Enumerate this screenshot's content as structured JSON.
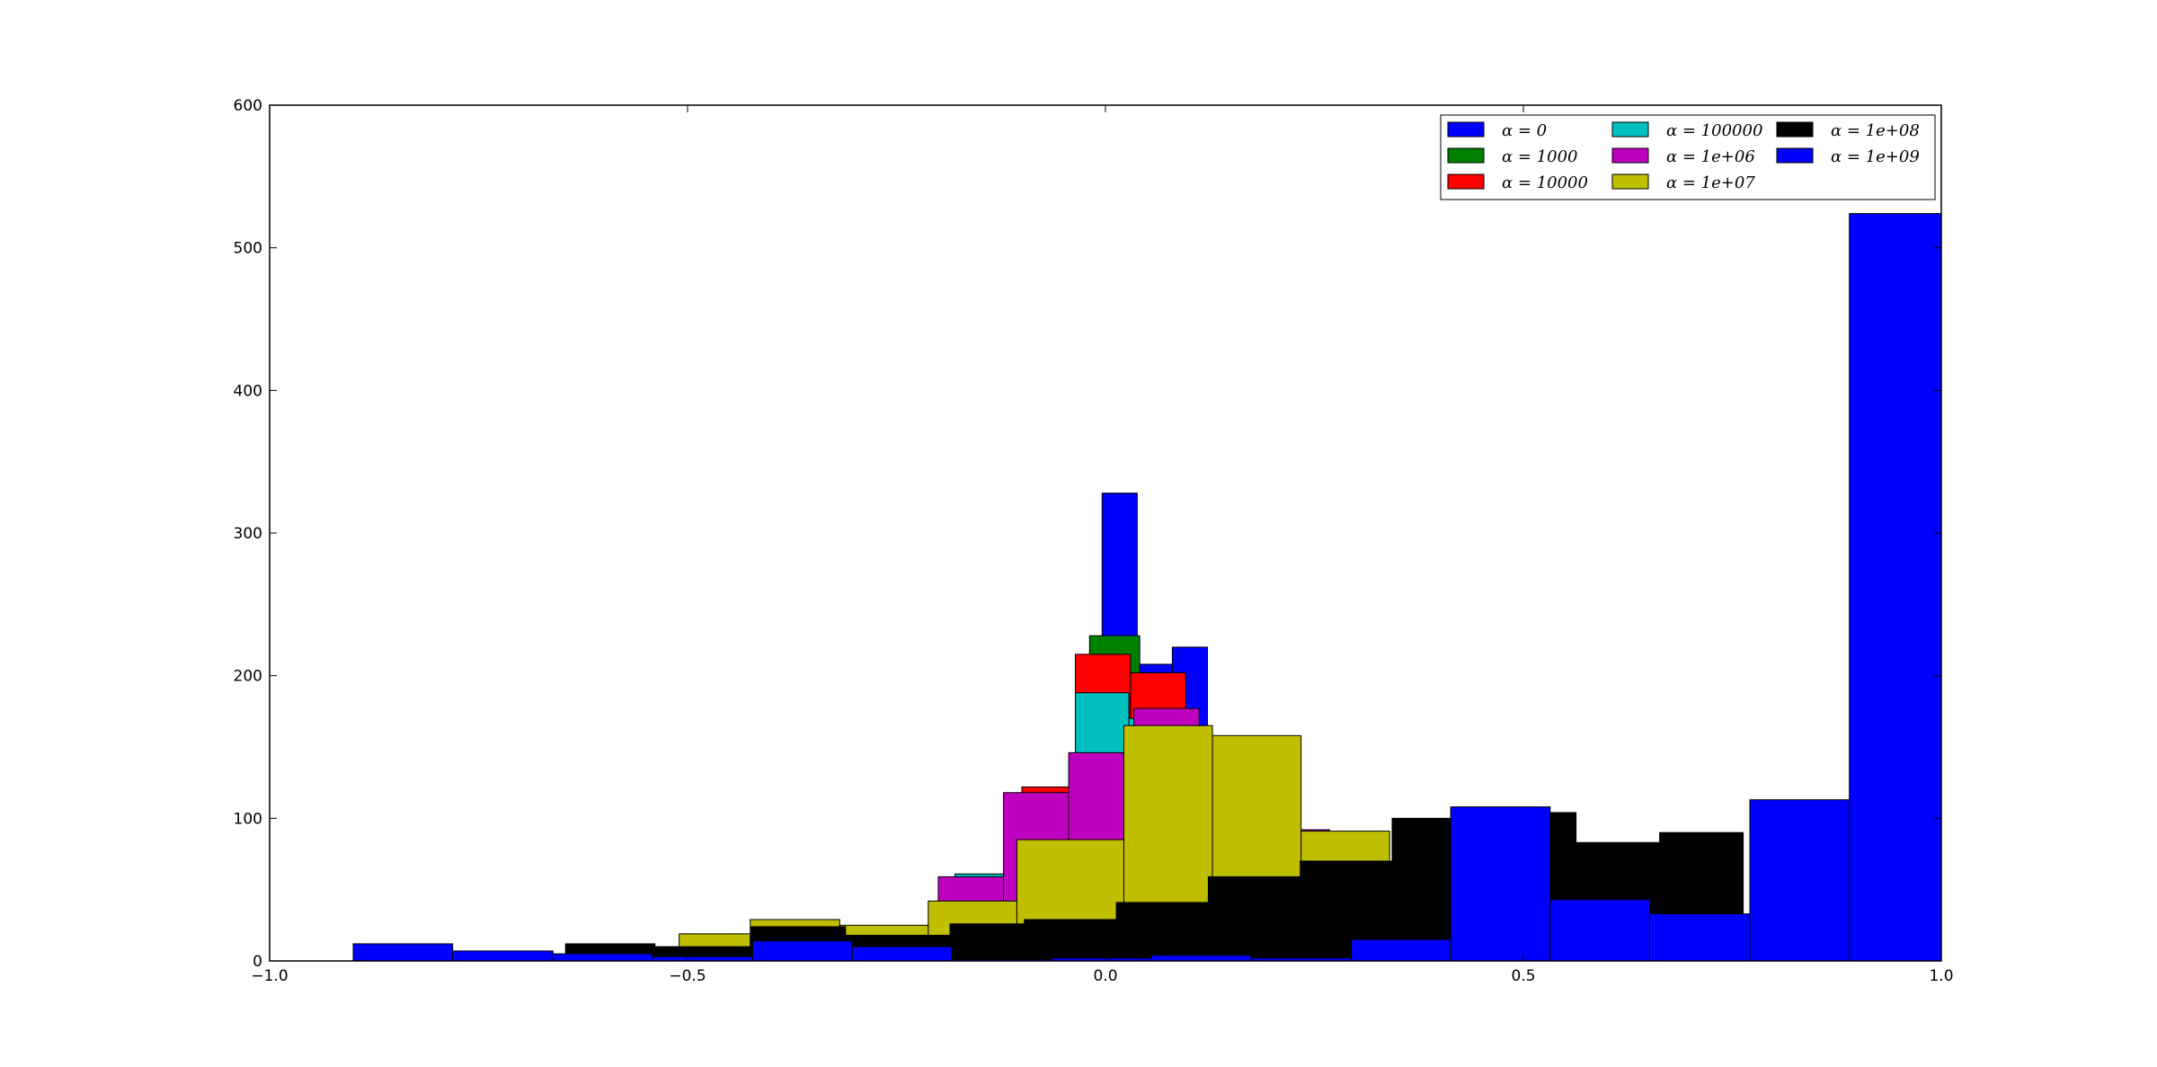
{
  "chart_data": {
    "type": "bar",
    "title": "",
    "xlabel": "",
    "ylabel": "",
    "xlim": [
      -1.0,
      1.0
    ],
    "ylim": [
      0,
      600
    ],
    "x_ticks": [
      -1.0,
      -0.5,
      0.0,
      0.5,
      1.0
    ],
    "x_tick_labels": [
      "−1.0",
      "−0.5",
      "0.0",
      "0.5",
      "1.0"
    ],
    "y_ticks": [
      0,
      100,
      200,
      300,
      400,
      500,
      600
    ],
    "y_tick_labels": [
      "0",
      "100",
      "200",
      "300",
      "400",
      "500",
      "600"
    ],
    "grid": false,
    "legend_position": "upper-right",
    "legend_columns": 3,
    "series": [
      {
        "name": "α = 0",
        "color": "#0000ff",
        "bins": [
          [
            -0.13,
            -0.088,
            1
          ],
          [
            -0.088,
            -0.046,
            5
          ],
          [
            -0.046,
            -0.004,
            68
          ],
          [
            -0.004,
            0.038,
            328
          ],
          [
            0.038,
            0.08,
            208
          ],
          [
            0.08,
            0.122,
            220
          ],
          [
            0.122,
            0.164,
            60
          ],
          [
            0.164,
            0.206,
            32
          ],
          [
            0.206,
            0.248,
            6
          ],
          [
            0.248,
            0.29,
            2
          ]
        ]
      },
      {
        "name": "α = 1000",
        "color": "#008000",
        "bins": [
          [
            -0.144,
            -0.082,
            3
          ],
          [
            -0.082,
            -0.036,
            18
          ],
          [
            -0.036,
            -0.019,
            178
          ],
          [
            -0.019,
            0.041,
            228
          ],
          [
            0.041,
            0.087,
            150
          ],
          [
            0.087,
            0.133,
            60
          ],
          [
            0.133,
            0.179,
            20
          ],
          [
            0.179,
            0.225,
            6
          ]
        ]
      },
      {
        "name": "α = 10000",
        "color": "#ff0000",
        "bins": [
          [
            -0.16,
            -0.1,
            4
          ],
          [
            -0.1,
            -0.036,
            122
          ],
          [
            -0.036,
            0.03,
            215
          ],
          [
            0.03,
            0.096,
            202
          ],
          [
            0.096,
            0.162,
            120
          ],
          [
            0.162,
            0.228,
            30
          ]
        ]
      },
      {
        "name": "α = 100000",
        "color": "#00bfbf",
        "bins": [
          [
            -0.18,
            -0.116,
            61
          ],
          [
            -0.116,
            -0.036,
            100
          ],
          [
            -0.036,
            0.028,
            188
          ],
          [
            0.028,
            0.092,
            170
          ],
          [
            0.092,
            0.156,
            90
          ],
          [
            0.156,
            0.22,
            40
          ]
        ]
      },
      {
        "name": "α = 1e+06",
        "color": "#bf00bf",
        "bins": [
          [
            -0.24,
            -0.2,
            10
          ],
          [
            -0.2,
            -0.122,
            59
          ],
          [
            -0.122,
            -0.044,
            118
          ],
          [
            -0.044,
            0.034,
            146
          ],
          [
            0.034,
            0.112,
            177
          ],
          [
            0.112,
            0.19,
            120
          ],
          [
            0.19,
            0.268,
            92
          ]
        ]
      },
      {
        "name": "α = 1e+07",
        "color": "#bfbf00",
        "bins": [
          [
            -0.51,
            -0.425,
            19
          ],
          [
            -0.425,
            -0.318,
            29
          ],
          [
            -0.318,
            -0.212,
            25
          ],
          [
            -0.212,
            -0.106,
            42
          ],
          [
            -0.106,
            0.022,
            85
          ],
          [
            0.022,
            0.128,
            165
          ],
          [
            0.128,
            0.234,
            158
          ],
          [
            0.234,
            0.34,
            91
          ]
        ]
      },
      {
        "name": "α = 1e+08",
        "color": "#000000",
        "bins": [
          [
            -0.646,
            -0.539,
            12
          ],
          [
            -0.539,
            -0.424,
            10
          ],
          [
            -0.424,
            -0.311,
            24
          ],
          [
            -0.311,
            -0.186,
            18
          ],
          [
            -0.186,
            -0.097,
            26
          ],
          [
            -0.097,
            0.013,
            29
          ],
          [
            0.013,
            0.123,
            41
          ],
          [
            0.123,
            0.233,
            59
          ],
          [
            0.233,
            0.343,
            70
          ],
          [
            0.343,
            0.453,
            100
          ],
          [
            0.453,
            0.563,
            104
          ],
          [
            0.563,
            0.663,
            83
          ],
          [
            0.663,
            0.763,
            90
          ]
        ]
      },
      {
        "name": "α = 1e+09",
        "color": "#0000ff",
        "bins": [
          [
            -0.9,
            -0.781,
            12
          ],
          [
            -0.781,
            -0.661,
            7
          ],
          [
            -0.661,
            -0.542,
            5
          ],
          [
            -0.542,
            -0.422,
            3
          ],
          [
            -0.422,
            -0.303,
            14
          ],
          [
            -0.303,
            -0.184,
            10
          ],
          [
            -0.184,
            -0.064,
            1
          ],
          [
            -0.064,
            0.055,
            2
          ],
          [
            0.055,
            0.174,
            4
          ],
          [
            0.174,
            0.294,
            2
          ],
          [
            0.294,
            0.413,
            15
          ],
          [
            0.413,
            0.532,
            108
          ],
          [
            0.532,
            0.651,
            43
          ],
          [
            0.651,
            0.771,
            33
          ],
          [
            0.771,
            0.89,
            113
          ],
          [
            0.89,
            1.0,
            524
          ]
        ]
      }
    ]
  }
}
